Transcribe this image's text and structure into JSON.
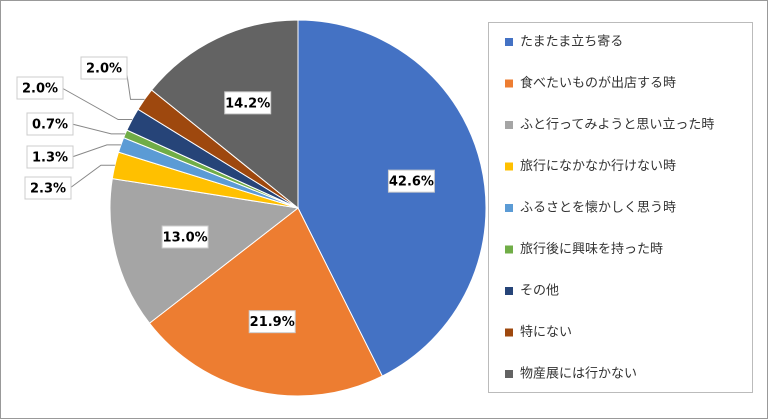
{
  "chart_data": {
    "type": "pie",
    "categories": [
      "たまたま立ち寄る",
      "食べたいものが出店する時",
      "ふと行ってみようと思い立った時",
      "旅行になかなか行けない時",
      "ふるさとを懐かしく思う時",
      "旅行後に興味を持った時",
      "その他",
      "特にない",
      "物産展には行かない"
    ],
    "values": [
      42.6,
      21.9,
      13.0,
      2.3,
      1.3,
      0.7,
      2.0,
      2.0,
      14.2
    ],
    "value_labels": [
      "42.6%",
      "21.9%",
      "13.0%",
      "2.3%",
      "1.3%",
      "0.7%",
      "2.0%",
      "2.0%",
      "14.2%"
    ],
    "colors": [
      "#4472c4",
      "#ed7d31",
      "#a5a5a5",
      "#ffc000",
      "#5b9bd5",
      "#70ad47",
      "#264478",
      "#9e480e",
      "#636363"
    ],
    "legend": "right"
  }
}
